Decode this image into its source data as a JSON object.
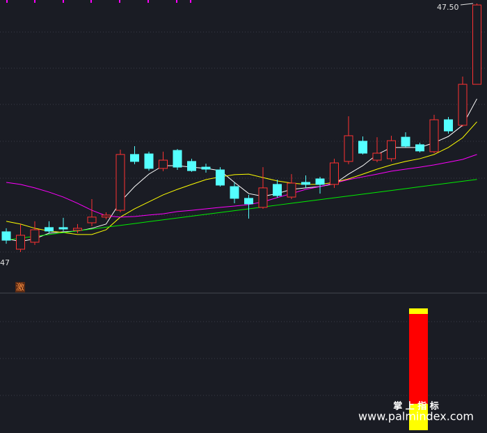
{
  "chart_data": {
    "type": "candlestick",
    "categories": [
      null,
      null,
      null,
      null,
      null,
      null,
      null,
      null,
      null,
      null,
      null,
      null,
      null,
      null,
      null,
      null,
      null,
      null,
      null,
      null,
      null,
      null,
      null,
      null,
      null,
      null,
      null,
      null,
      null,
      null,
      null,
      null,
      null,
      null
    ],
    "open": [
      35.15,
      34.2,
      34.58,
      35.38,
      35.38,
      35.23,
      35.64,
      35.95,
      36.32,
      39.36,
      39.39,
      38.6,
      39.58,
      38.98,
      38.67,
      38.52,
      37.61,
      36.97,
      36.48,
      37.73,
      37.04,
      37.84,
      38.03,
      37.73,
      38.98,
      40.08,
      39.05,
      39.13,
      40.3,
      39.89,
      39.51,
      41.25,
      40.95,
      43.18
    ],
    "high": [
      35.34,
      35.57,
      35.72,
      35.72,
      35.91,
      35.57,
      36.93,
      36.21,
      39.62,
      39.81,
      39.51,
      39.51,
      39.66,
      39.13,
      38.86,
      38.67,
      37.84,
      37.16,
      38.67,
      37.99,
      38.29,
      38.22,
      38.14,
      39.13,
      41.44,
      40.34,
      40.3,
      40.38,
      40.57,
      40.0,
      41.52,
      41.4,
      43.6,
      47.58
    ],
    "low": [
      34.5,
      34.05,
      34.43,
      35.07,
      35.19,
      35.07,
      35.45,
      35.83,
      36.21,
      38.83,
      38.48,
      38.45,
      38.52,
      38.41,
      38.37,
      37.61,
      36.7,
      35.87,
      36.4,
      37.01,
      36.93,
      37.54,
      37.23,
      37.54,
      38.83,
      39.36,
      38.94,
      38.98,
      39.74,
      39.47,
      39.43,
      40.49,
      40.87,
      43.18
    ],
    "close": [
      34.69,
      34.96,
      35.26,
      35.19,
      35.3,
      35.34,
      35.95,
      36.06,
      39.36,
      38.98,
      38.6,
      39.05,
      38.67,
      38.48,
      38.56,
      37.69,
      36.97,
      36.67,
      37.54,
      37.12,
      37.8,
      37.73,
      37.73,
      38.9,
      40.38,
      39.43,
      39.43,
      40.11,
      39.81,
      39.55,
      41.25,
      40.64,
      43.18,
      47.5
    ],
    "up_color": "#ff3232",
    "down_color": "#54ffff",
    "series": [
      {
        "color": "#ffffff",
        "values": [
          34.77,
          34.62,
          34.77,
          35.07,
          35.15,
          35.19,
          35.34,
          35.57,
          36.78,
          37.61,
          38.29,
          38.75,
          38.75,
          38.67,
          38.6,
          38.48,
          37.84,
          37.23,
          37.08,
          37.23,
          37.46,
          37.54,
          37.61,
          37.76,
          38.29,
          38.75,
          39.36,
          39.74,
          39.74,
          39.74,
          40.0,
          40.34,
          40.95,
          42.39
        ]
      },
      {
        "color": "#ffff00",
        "values": [
          35.72,
          35.57,
          35.34,
          35.19,
          35.11,
          35.0,
          35.0,
          35.26,
          35.95,
          36.4,
          36.78,
          37.16,
          37.46,
          37.73,
          37.99,
          38.14,
          38.26,
          38.29,
          38.1,
          37.92,
          37.8,
          37.73,
          37.73,
          37.84,
          38.03,
          38.29,
          38.56,
          38.79,
          38.98,
          39.13,
          39.36,
          39.74,
          40.27,
          41.14
        ]
      },
      {
        "color": "#ff00ff",
        "values": [
          37.84,
          37.73,
          37.54,
          37.31,
          37.04,
          36.7,
          36.32,
          36.02,
          35.95,
          35.98,
          36.06,
          36.13,
          36.25,
          36.32,
          36.4,
          36.48,
          36.55,
          36.63,
          36.78,
          37.01,
          37.23,
          37.46,
          37.61,
          37.8,
          37.99,
          38.14,
          38.29,
          38.45,
          38.56,
          38.67,
          38.79,
          38.94,
          39.09,
          39.36
        ]
      },
      {
        "color": "#00ee00",
        "values": [
          34.7,
          34.8,
          34.9,
          35.0,
          35.1,
          35.2,
          35.3,
          35.4,
          35.5,
          35.6,
          35.7,
          35.8,
          35.9,
          36.0,
          36.1,
          36.2,
          36.3,
          36.4,
          36.5,
          36.6,
          36.7,
          36.8,
          36.9,
          37.0,
          37.1,
          37.2,
          37.3,
          37.4,
          37.5,
          37.6,
          37.7,
          37.8,
          37.9,
          38.0
        ]
      }
    ],
    "ylim": [
      31.85,
      47.77
    ],
    "high_label": "47.50",
    "low_label": "47",
    "marker": "激",
    "watermark": [
      "掌 上 指 标",
      "www.palmindex.com"
    ]
  }
}
